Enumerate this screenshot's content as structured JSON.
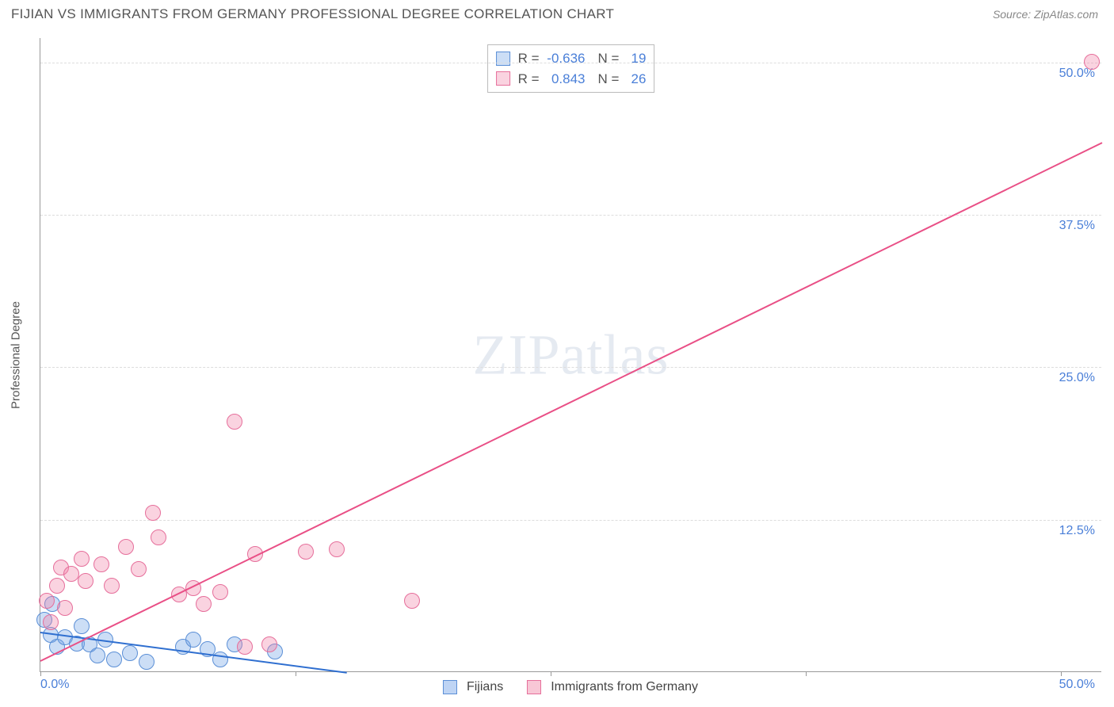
{
  "header": {
    "title": "FIJIAN VS IMMIGRANTS FROM GERMANY PROFESSIONAL DEGREE CORRELATION CHART",
    "source": "Source: ZipAtlas.com"
  },
  "watermark": {
    "part1": "ZIP",
    "part2": "atlas"
  },
  "chart": {
    "type": "scatter",
    "yaxis_title": "Professional Degree",
    "xlim": [
      0,
      52
    ],
    "ylim": [
      0,
      52
    ],
    "grid_color": "#dddddd",
    "axis_color": "#999999",
    "background_color": "#ffffff",
    "yticks": [
      {
        "v": 12.5,
        "label": "12.5%"
      },
      {
        "v": 25.0,
        "label": "25.0%"
      },
      {
        "v": 37.5,
        "label": "37.5%"
      },
      {
        "v": 50.0,
        "label": "50.0%"
      }
    ],
    "xticks_major": [
      0,
      12.5,
      25,
      37.5,
      50
    ],
    "xtick_labels": [
      {
        "v": 0,
        "label": "0.0%",
        "align": "left"
      },
      {
        "v": 50,
        "label": "50.0%",
        "align": "right"
      }
    ],
    "series": [
      {
        "name": "Fijians",
        "fill": "rgba(110,160,230,0.35)",
        "stroke": "#5b8fd6",
        "line_color": "#2f6fd0",
        "marker_r": 10,
        "R": "-0.636",
        "N": "19",
        "trend": {
          "x1": 0,
          "y1": 3.3,
          "x2": 15,
          "y2": 0
        },
        "points": [
          {
            "x": 0.2,
            "y": 4.2
          },
          {
            "x": 0.5,
            "y": 3.0
          },
          {
            "x": 0.6,
            "y": 5.5
          },
          {
            "x": 0.8,
            "y": 2.0
          },
          {
            "x": 1.2,
            "y": 2.8
          },
          {
            "x": 1.8,
            "y": 2.3
          },
          {
            "x": 2.0,
            "y": 3.7
          },
          {
            "x": 2.4,
            "y": 2.2
          },
          {
            "x": 2.8,
            "y": 1.3
          },
          {
            "x": 3.2,
            "y": 2.6
          },
          {
            "x": 3.6,
            "y": 1.0
          },
          {
            "x": 4.4,
            "y": 1.5
          },
          {
            "x": 5.2,
            "y": 0.8
          },
          {
            "x": 7.0,
            "y": 2.0
          },
          {
            "x": 7.5,
            "y": 2.6
          },
          {
            "x": 8.2,
            "y": 1.8
          },
          {
            "x": 8.8,
            "y": 1.0
          },
          {
            "x": 9.5,
            "y": 2.2
          },
          {
            "x": 11.5,
            "y": 1.6
          }
        ]
      },
      {
        "name": "Immigrants from Germany",
        "fill": "rgba(240,130,165,0.35)",
        "stroke": "#e66f9b",
        "line_color": "#e94f86",
        "marker_r": 10,
        "R": "0.843",
        "N": "26",
        "trend": {
          "x1": 0,
          "y1": 1.0,
          "x2": 52,
          "y2": 43.5
        },
        "points": [
          {
            "x": 0.3,
            "y": 5.8
          },
          {
            "x": 0.5,
            "y": 4.0
          },
          {
            "x": 0.8,
            "y": 7.0
          },
          {
            "x": 1.0,
            "y": 8.5
          },
          {
            "x": 1.2,
            "y": 5.2
          },
          {
            "x": 1.5,
            "y": 8.0
          },
          {
            "x": 2.0,
            "y": 9.2
          },
          {
            "x": 2.2,
            "y": 7.4
          },
          {
            "x": 3.0,
            "y": 8.8
          },
          {
            "x": 3.5,
            "y": 7.0
          },
          {
            "x": 4.2,
            "y": 10.2
          },
          {
            "x": 4.8,
            "y": 8.4
          },
          {
            "x": 5.5,
            "y": 13.0
          },
          {
            "x": 5.8,
            "y": 11.0
          },
          {
            "x": 6.8,
            "y": 6.3
          },
          {
            "x": 7.5,
            "y": 6.8
          },
          {
            "x": 8.0,
            "y": 5.5
          },
          {
            "x": 8.8,
            "y": 6.5
          },
          {
            "x": 9.5,
            "y": 20.5
          },
          {
            "x": 10.0,
            "y": 2.0
          },
          {
            "x": 10.5,
            "y": 9.6
          },
          {
            "x": 11.2,
            "y": 2.2
          },
          {
            "x": 13.0,
            "y": 9.8
          },
          {
            "x": 14.5,
            "y": 10.0
          },
          {
            "x": 18.2,
            "y": 5.8
          },
          {
            "x": 51.5,
            "y": 50.0
          }
        ]
      }
    ],
    "stats_legend_labels": {
      "R": "R =",
      "N": "N ="
    },
    "bottom_legend": [
      {
        "label": "Fijians",
        "fill": "rgba(110,160,230,0.45)",
        "stroke": "#5b8fd6"
      },
      {
        "label": "Immigrants from Germany",
        "fill": "rgba(240,130,165,0.45)",
        "stroke": "#e66f9b"
      }
    ]
  }
}
